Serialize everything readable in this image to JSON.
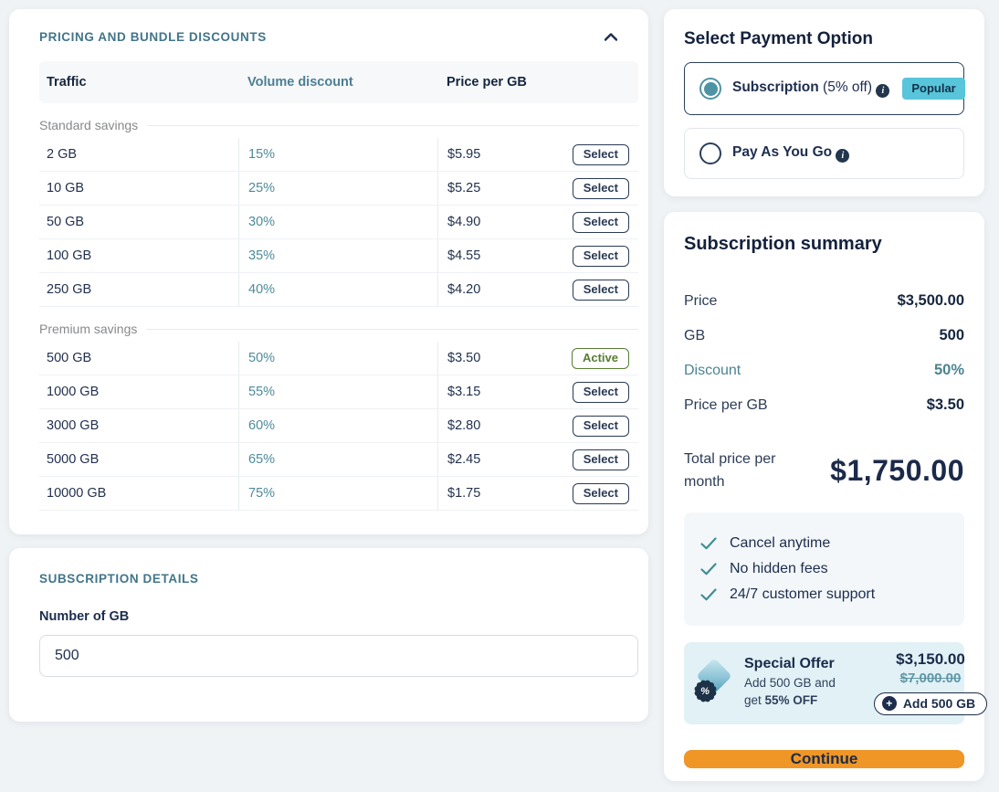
{
  "pricing_card": {
    "title": "PRICING AND BUNDLE DISCOUNTS",
    "collapse_icon": "chevron-up-icon",
    "table": {
      "headers": {
        "traffic": "Traffic",
        "discount": "Volume discount",
        "price": "Price per GB"
      },
      "sections": [
        {
          "label": "Standard savings",
          "rows": [
            {
              "traffic": "2 GB",
              "discount": "15%",
              "price": "$5.95",
              "action": "Select",
              "active": false
            },
            {
              "traffic": "10 GB",
              "discount": "25%",
              "price": "$5.25",
              "action": "Select",
              "active": false
            },
            {
              "traffic": "50 GB",
              "discount": "30%",
              "price": "$4.90",
              "action": "Select",
              "active": false
            },
            {
              "traffic": "100 GB",
              "discount": "35%",
              "price": "$4.55",
              "action": "Select",
              "active": false
            },
            {
              "traffic": "250 GB",
              "discount": "40%",
              "price": "$4.20",
              "action": "Select",
              "active": false
            }
          ]
        },
        {
          "label": "Premium savings",
          "rows": [
            {
              "traffic": "500 GB",
              "discount": "50%",
              "price": "$3.50",
              "action": "Active",
              "active": true
            },
            {
              "traffic": "1000 GB",
              "discount": "55%",
              "price": "$3.15",
              "action": "Select",
              "active": false
            },
            {
              "traffic": "3000 GB",
              "discount": "60%",
              "price": "$2.80",
              "action": "Select",
              "active": false
            },
            {
              "traffic": "5000 GB",
              "discount": "65%",
              "price": "$2.45",
              "action": "Select",
              "active": false
            },
            {
              "traffic": "10000 GB",
              "discount": "75%",
              "price": "$1.75",
              "action": "Select",
              "active": false
            }
          ]
        }
      ]
    }
  },
  "subscription_details": {
    "title": "SUBSCRIPTION DETAILS",
    "gb_label": "Number of GB",
    "gb_value": "500"
  },
  "payment_option": {
    "title": "Select Payment Option",
    "options": [
      {
        "label": "Subscription",
        "suffix": " (5% off) ",
        "info_icon": true,
        "badge": "Popular",
        "selected": true
      },
      {
        "label": "Pay As You Go",
        "suffix": " ",
        "info_icon": true,
        "badge": "",
        "selected": false
      }
    ]
  },
  "summary": {
    "title": "Subscription summary",
    "rows": [
      {
        "label": "Price",
        "value": "$3,500.00",
        "highlight": false
      },
      {
        "label": "GB",
        "value": "500",
        "highlight": false
      },
      {
        "label": "Discount",
        "value": "50%",
        "highlight": true
      },
      {
        "label": "Price per GB",
        "value": "$3.50",
        "highlight": false
      }
    ],
    "total_label": "Total price per month",
    "total_value": "$1,750.00",
    "benefits": [
      "Cancel anytime",
      "No hidden fees",
      "24/7 customer support"
    ],
    "offer": {
      "title": "Special Offer",
      "desc_line1": "Add 500 GB and",
      "desc_prefix": "get ",
      "desc_bold": "55% OFF",
      "price_new": "$3,150.00",
      "price_old": "$7,000.00",
      "add_button": "Add 500 GB"
    },
    "continue_label": "Continue"
  },
  "colors": {
    "page_bg": "#eff3f5",
    "accent_teal": "#4e8b9a",
    "heading_teal": "#417589",
    "navy": "#1d2d4e",
    "popular_badge": "#58c5da",
    "active_green": "#587c33",
    "offer_bg": "#e1f1f6",
    "continue_orange": "#ef9627"
  }
}
